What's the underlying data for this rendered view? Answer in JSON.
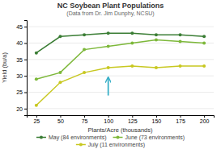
{
  "chart_data": {
    "type": "line",
    "title": "NC Soybean Plant Populations",
    "subtitle": "(Data from Dr. Jim Dunphy, NCSU)",
    "xlabel": "Plants/Acre (thousands)",
    "ylabel": "Yield (bu/a)",
    "x": [
      25,
      50,
      75,
      100,
      125,
      150,
      175,
      200
    ],
    "series": [
      {
        "name": "May (84 environments)",
        "color": "#3a7d34",
        "values": [
          37,
          42,
          42.5,
          43,
          43,
          42.5,
          42.5,
          42
        ]
      },
      {
        "name": "June (73 environments)",
        "color": "#7db83a",
        "values": [
          29,
          31,
          38,
          39,
          40,
          41,
          40.5,
          40
        ]
      },
      {
        "name": "July (11 environments)",
        "color": "#c8c820",
        "values": [
          21,
          28,
          31,
          32.5,
          33,
          32.5,
          33,
          33
        ]
      }
    ],
    "annotations": [
      {
        "type": "arrow",
        "x": 100,
        "y_start": 24,
        "y_end": 29.5,
        "color": "#3ab0c8"
      }
    ],
    "xlim": [
      15,
      210
    ],
    "xticks": [
      25,
      50,
      75,
      100,
      125,
      150,
      175,
      200
    ],
    "ylim": [
      18,
      47
    ],
    "yticks": [
      20,
      25,
      30,
      35,
      40,
      45
    ],
    "grid": true,
    "marker": "circle",
    "legend": "bottom"
  }
}
